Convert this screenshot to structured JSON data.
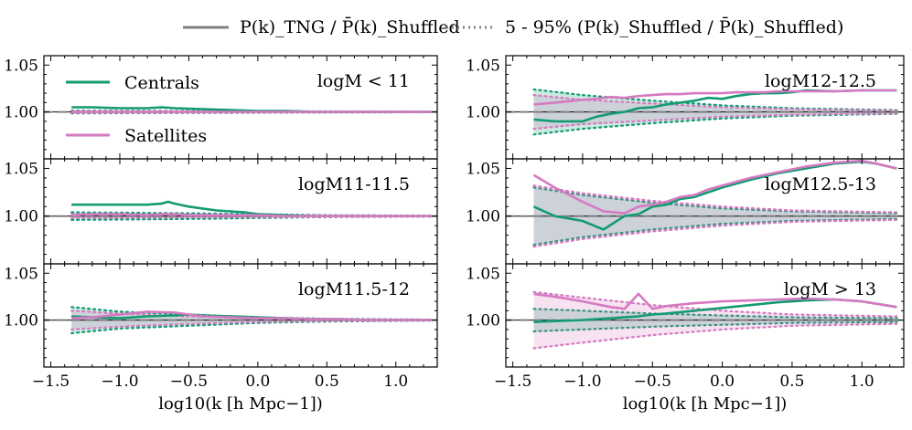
{
  "legend_top": {
    "solid_label": "P(k)_TNG / P̄(k)_Shuffled",
    "dotted_label": "5 - 95% (P(k)_Shuffled / P̄(k)_Shuffled)"
  },
  "colors": {
    "centrals": "#139b73",
    "satellites": "#d57ac1",
    "reference": "#808080",
    "axis": "#000000"
  },
  "chart_data": [
    {
      "type": "line",
      "panel": "top-left",
      "annotation": "logM < 11",
      "legend": [
        "Centrals",
        "Satellites"
      ],
      "legend_placement": "upper-left",
      "xlim": [
        -1.55,
        1.3
      ],
      "ylim": [
        0.95,
        1.06
      ],
      "yticks": [
        "1.05",
        "1.00"
      ],
      "xticks": [],
      "xlabel": "",
      "x": [
        -1.35,
        -1.2,
        -1.0,
        -0.8,
        -0.7,
        -0.6,
        -0.4,
        -0.2,
        0.0,
        0.2,
        0.4,
        0.6,
        0.8,
        1.0,
        1.25
      ],
      "series": [
        {
          "name": "Centrals",
          "values": [
            1.005,
            1.005,
            1.004,
            1.004,
            1.005,
            1.004,
            1.003,
            1.002,
            1.001,
            1.001,
            1.0,
            1.0,
            1.0,
            1.0,
            1.0
          ]
        },
        {
          "name": "Satellites",
          "values": [
            1.0,
            1.0,
            1.0,
            1.0,
            1.0,
            1.0,
            1.0,
            1.0,
            1.0,
            1.0,
            1.0,
            1.0,
            1.0,
            1.0,
            1.0
          ]
        }
      ],
      "percentile_band_centrals": [
        [
          -1.35,
          0.0015
        ],
        [
          0.0,
          0.0008
        ],
        [
          1.25,
          0.0003
        ]
      ],
      "percentile_band_satellites": [
        [
          -1.35,
          0.001
        ],
        [
          0.0,
          0.0005
        ],
        [
          1.25,
          0.0002
        ]
      ]
    },
    {
      "type": "line",
      "panel": "middle-left",
      "annotation": "logM11-11.5",
      "xlim": [
        -1.55,
        1.3
      ],
      "ylim": [
        0.95,
        1.06
      ],
      "yticks": [
        "1.05",
        "1.00"
      ],
      "xticks": [],
      "xlabel": "",
      "x": [
        -1.35,
        -1.2,
        -1.0,
        -0.8,
        -0.7,
        -0.65,
        -0.6,
        -0.5,
        -0.4,
        -0.3,
        -0.2,
        -0.1,
        0.0,
        0.2,
        0.4,
        0.6,
        0.8,
        1.0,
        1.25
      ],
      "series": [
        {
          "name": "Centrals",
          "values": [
            1.012,
            1.012,
            1.012,
            1.012,
            1.013,
            1.015,
            1.013,
            1.01,
            1.008,
            1.006,
            1.005,
            1.004,
            1.002,
            1.001,
            1.0,
            1.0,
            1.0,
            1.0,
            1.0
          ]
        },
        {
          "name": "Satellites",
          "values": [
            1.001,
            1.002,
            1.002,
            1.001,
            1.002,
            1.002,
            1.002,
            1.001,
            1.001,
            1.001,
            1.001,
            1.001,
            1.001,
            1.0,
            1.0,
            1.0,
            1.0,
            1.0,
            1.0
          ]
        }
      ],
      "percentile_band_centrals": [
        [
          -1.35,
          0.004
        ],
        [
          -0.5,
          0.003
        ],
        [
          0.0,
          0.002
        ],
        [
          0.5,
          0.001
        ],
        [
          1.25,
          0.0005
        ]
      ],
      "percentile_band_satellites": [
        [
          -1.35,
          0.002
        ],
        [
          0.0,
          0.001
        ],
        [
          1.25,
          0.0004
        ]
      ]
    },
    {
      "type": "line",
      "panel": "bottom-left",
      "annotation": "logM11.5-12",
      "xlim": [
        -1.55,
        1.3
      ],
      "ylim": [
        0.95,
        1.06
      ],
      "yticks": [
        "1.05",
        "1.00"
      ],
      "xticks": [
        "−1.5",
        "−1.0",
        "−0.5",
        "0.0",
        "0.5",
        "1.0"
      ],
      "xlabel": "log10(k [h Mpc−1])",
      "x": [
        -1.35,
        -1.2,
        -1.0,
        -0.8,
        -0.6,
        -0.5,
        -0.4,
        -0.2,
        0.0,
        0.2,
        0.4,
        0.6,
        0.8,
        1.0,
        1.25
      ],
      "series": [
        {
          "name": "Centrals",
          "values": [
            1.004,
            1.003,
            1.002,
            1.004,
            1.005,
            1.006,
            1.005,
            1.004,
            1.003,
            1.002,
            1.001,
            1.001,
            1.0,
            1.0,
            1.0
          ]
        },
        {
          "name": "Satellites",
          "values": [
            1.002,
            1.003,
            1.006,
            1.009,
            1.008,
            1.006,
            1.004,
            1.003,
            1.002,
            1.002,
            1.001,
            1.001,
            1.0,
            1.0,
            1.0
          ]
        }
      ],
      "percentile_band_centrals": [
        [
          -1.35,
          0.014
        ],
        [
          -1.0,
          0.009
        ],
        [
          -0.5,
          0.006
        ],
        [
          0.0,
          0.003
        ],
        [
          0.5,
          0.0015
        ],
        [
          1.25,
          0.0005
        ]
      ],
      "percentile_band_satellites": [
        [
          -1.35,
          0.01
        ],
        [
          -1.0,
          0.007
        ],
        [
          -0.5,
          0.004
        ],
        [
          0.0,
          0.002
        ],
        [
          0.5,
          0.001
        ],
        [
          1.25,
          0.0004
        ]
      ]
    },
    {
      "type": "line",
      "panel": "top-right",
      "annotation": "logM12-12.5",
      "xlim": [
        -1.55,
        1.3
      ],
      "ylim": [
        0.95,
        1.06
      ],
      "yticks": [
        "1.05",
        "1.00"
      ],
      "xticks": [],
      "xlabel": "",
      "x": [
        -1.35,
        -1.2,
        -1.0,
        -0.9,
        -0.8,
        -0.7,
        -0.6,
        -0.5,
        -0.4,
        -0.3,
        -0.2,
        -0.1,
        0.0,
        0.1,
        0.2,
        0.3,
        0.4,
        0.5,
        0.6,
        0.8,
        1.0,
        1.25
      ],
      "series": [
        {
          "name": "Centrals",
          "values": [
            0.992,
            0.99,
            0.99,
            0.995,
            0.998,
            1.0,
            1.004,
            1.005,
            1.008,
            1.01,
            1.012,
            1.015,
            1.014,
            1.017,
            1.019,
            1.02,
            1.02,
            1.021,
            1.023,
            1.022,
            1.023,
            1.023
          ]
        },
        {
          "name": "Satellites",
          "values": [
            1.008,
            1.01,
            1.013,
            1.014,
            1.016,
            1.015,
            1.017,
            1.018,
            1.019,
            1.019,
            1.02,
            1.02,
            1.02,
            1.021,
            1.021,
            1.021,
            1.022,
            1.022,
            1.022,
            1.022,
            1.023,
            1.023
          ]
        }
      ],
      "percentile_band_centrals": [
        [
          -1.35,
          0.024
        ],
        [
          -1.0,
          0.018
        ],
        [
          -0.5,
          0.012
        ],
        [
          0.0,
          0.007
        ],
        [
          0.5,
          0.004
        ],
        [
          1.25,
          0.002
        ]
      ],
      "percentile_band_satellites": [
        [
          -1.35,
          0.018
        ],
        [
          -1.0,
          0.013
        ],
        [
          -0.5,
          0.009
        ],
        [
          0.0,
          0.005
        ],
        [
          0.5,
          0.003
        ],
        [
          1.25,
          0.0015
        ]
      ]
    },
    {
      "type": "line",
      "panel": "middle-right",
      "annotation": "logM12.5-13",
      "xlim": [
        -1.55,
        1.3
      ],
      "ylim": [
        0.95,
        1.06
      ],
      "yticks": [
        "1.05",
        "1.00"
      ],
      "xticks": [],
      "xlabel": "",
      "x": [
        -1.35,
        -1.2,
        -1.0,
        -0.85,
        -0.7,
        -0.6,
        -0.5,
        -0.4,
        -0.3,
        -0.2,
        -0.1,
        0.0,
        0.2,
        0.4,
        0.6,
        0.8,
        1.0,
        1.1,
        1.25
      ],
      "series": [
        {
          "name": "Centrals",
          "values": [
            1.01,
            1.0,
            0.995,
            0.986,
            1.0,
            1.002,
            1.01,
            1.012,
            1.018,
            1.02,
            1.025,
            1.03,
            1.038,
            1.045,
            1.05,
            1.055,
            1.057,
            1.055,
            1.05
          ]
        },
        {
          "name": "Satellites",
          "values": [
            1.043,
            1.03,
            1.015,
            1.005,
            1.003,
            1.01,
            1.012,
            1.015,
            1.02,
            1.022,
            1.028,
            1.032,
            1.04,
            1.046,
            1.052,
            1.056,
            1.058,
            1.055,
            1.05
          ]
        }
      ],
      "percentile_band_centrals": [
        [
          -1.35,
          0.03
        ],
        [
          -1.0,
          0.022
        ],
        [
          -0.5,
          0.014
        ],
        [
          0.0,
          0.008
        ],
        [
          0.5,
          0.005
        ],
        [
          1.25,
          0.003
        ]
      ],
      "percentile_band_satellites": [
        [
          -1.35,
          0.032
        ],
        [
          -1.0,
          0.024
        ],
        [
          -0.5,
          0.016
        ],
        [
          0.0,
          0.01
        ],
        [
          0.5,
          0.006
        ],
        [
          1.25,
          0.004
        ]
      ]
    },
    {
      "type": "line",
      "panel": "bottom-right",
      "annotation": "logM > 13",
      "xlim": [
        -1.55,
        1.3
      ],
      "ylim": [
        0.95,
        1.06
      ],
      "yticks": [
        "1.05",
        "1.00"
      ],
      "xticks": [
        "−1.5",
        "−1.0",
        "−0.5",
        "0.0",
        "0.5",
        "1.0"
      ],
      "xlabel": "log10(k [h Mpc−1])",
      "x": [
        -1.35,
        -1.2,
        -1.0,
        -0.8,
        -0.7,
        -0.6,
        -0.5,
        -0.4,
        -0.2,
        0.0,
        0.2,
        0.4,
        0.6,
        0.8,
        1.0,
        1.25
      ],
      "series": [
        {
          "name": "Centrals",
          "values": [
            0.998,
            0.999,
            1.0,
            1.002,
            1.003,
            1.004,
            1.006,
            1.007,
            1.01,
            1.013,
            1.016,
            1.019,
            1.021,
            1.022,
            1.02,
            1.014
          ]
        },
        {
          "name": "Satellites",
          "values": [
            1.028,
            1.025,
            1.02,
            1.014,
            1.012,
            1.028,
            1.012,
            1.015,
            1.018,
            1.02,
            1.021,
            1.022,
            1.023,
            1.022,
            1.02,
            1.014
          ]
        }
      ],
      "percentile_band_centrals": [
        [
          -1.35,
          0.012
        ],
        [
          -1.0,
          0.01
        ],
        [
          -0.5,
          0.007
        ],
        [
          0.0,
          0.005
        ],
        [
          0.5,
          0.003
        ],
        [
          1.25,
          0.002
        ]
      ],
      "percentile_band_satellites": [
        [
          -1.35,
          0.03
        ],
        [
          -1.0,
          0.024
        ],
        [
          -0.5,
          0.016
        ],
        [
          0.0,
          0.01
        ],
        [
          0.5,
          0.006
        ],
        [
          1.25,
          0.004
        ]
      ]
    }
  ]
}
